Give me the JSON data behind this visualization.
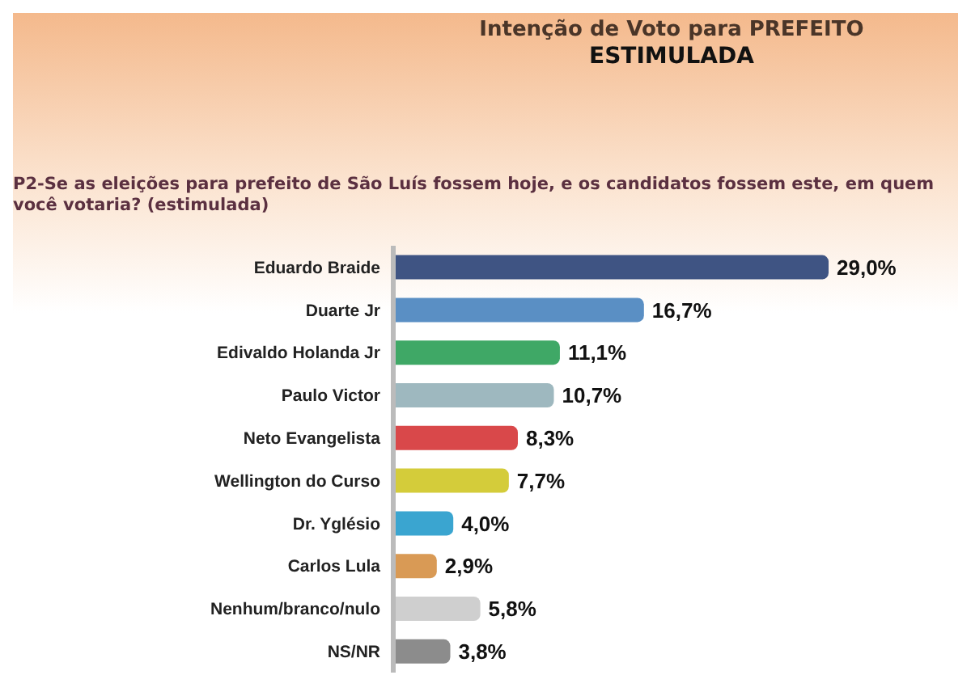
{
  "chart_data": {
    "type": "bar",
    "orientation": "horizontal",
    "title": "Intenção de Voto para PREFEITO\nESTIMULADA",
    "subtitle": "P2-Se as eleições para prefeito de São Luís fossem hoje, e os candidatos fossem este, em quem você votaria? (estimulada)",
    "categories": [
      "Eduardo Braide",
      "Duarte Jr",
      "Edivaldo Holanda Jr",
      "Paulo Victor",
      "Neto Evangelista",
      "Wellington do Curso",
      "Dr. Yglésio",
      "Carlos Lula",
      "Nenhum/branco/nulo",
      "NS/NR"
    ],
    "values": [
      29.0,
      16.7,
      11.1,
      10.7,
      8.3,
      7.7,
      4.0,
      2.9,
      5.8,
      3.8
    ],
    "value_labels": [
      "29,0%",
      "16,7%",
      "11,1%",
      "10,7%",
      "8,3%",
      "7,7%",
      "4,0%",
      "2,9%",
      "5,8%",
      "3,8%"
    ],
    "colors": [
      "#3f5483",
      "#5a8fc4",
      "#3fa866",
      "#9eb8bf",
      "#d9484a",
      "#d4cc3a",
      "#3aa5d0",
      "#d99a55",
      "#cfcfcf",
      "#8c8c8c"
    ],
    "tick_labels": "y"
  }
}
